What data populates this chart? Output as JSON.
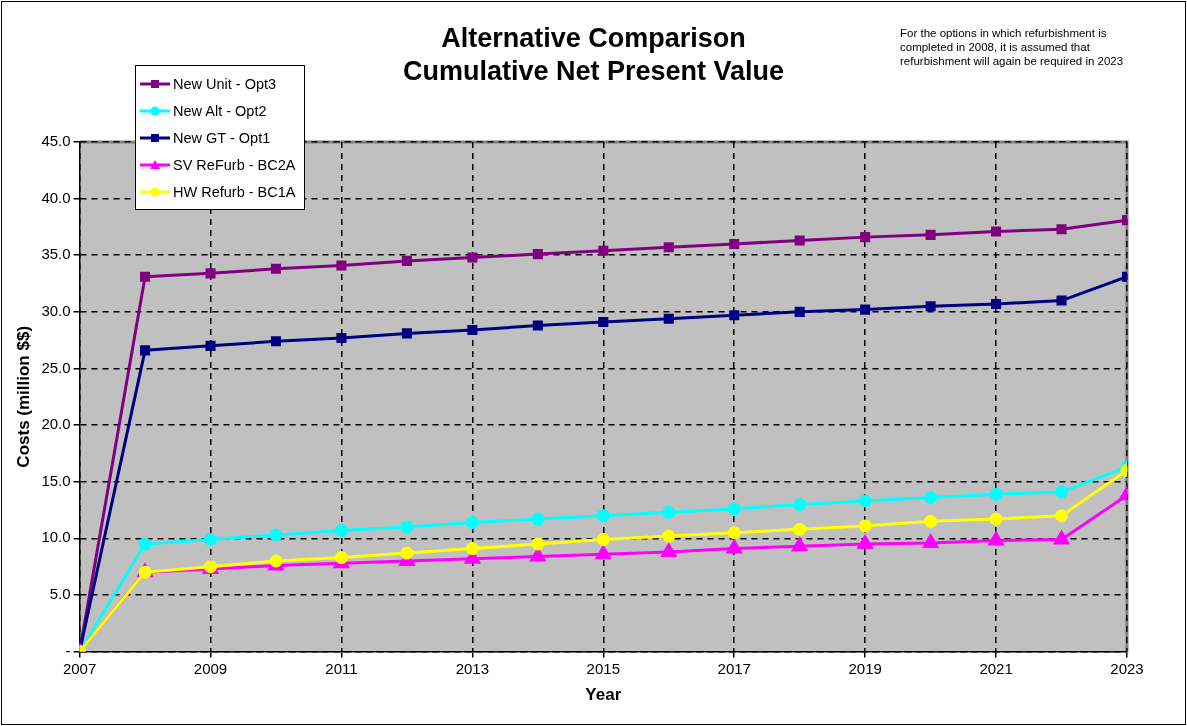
{
  "chart_data": {
    "type": "line",
    "title": "Alternative Comparison",
    "subtitle": "Cumulative Net Present Value",
    "xlabel": "Year",
    "ylabel": "Costs (million $$)",
    "annotations": [
      "For the options in which refurbishment is completed in 2008, it is assumed that refurbishment will again be required in 2023"
    ],
    "x": [
      2007,
      2008,
      2009,
      2010,
      2011,
      2012,
      2013,
      2014,
      2015,
      2016,
      2017,
      2018,
      2019,
      2020,
      2021,
      2022,
      2023
    ],
    "series": [
      {
        "name": "New Unit - Opt3",
        "color": "#800080",
        "marker": "square",
        "values": [
          0,
          33.1,
          33.4,
          33.8,
          34.1,
          34.5,
          34.8,
          35.1,
          35.4,
          35.7,
          36.0,
          36.3,
          36.6,
          36.8,
          37.1,
          37.3,
          38.1
        ]
      },
      {
        "name": "New Alt - Opt2",
        "color": "#00ffff",
        "marker": "circle",
        "values": [
          0,
          9.5,
          9.9,
          10.3,
          10.7,
          11.0,
          11.4,
          11.7,
          12.0,
          12.3,
          12.6,
          13.0,
          13.3,
          13.6,
          13.9,
          14.1,
          16.3
        ]
      },
      {
        "name": "New GT - Opt1",
        "color": "#000080",
        "marker": "square",
        "values": [
          0,
          26.6,
          27.0,
          27.4,
          27.7,
          28.1,
          28.4,
          28.8,
          29.1,
          29.4,
          29.7,
          30.0,
          30.2,
          30.5,
          30.7,
          31.0,
          33.1
        ]
      },
      {
        "name": "SV ReFurb - BC2A",
        "color": "#ff00ff",
        "marker": "triangle",
        "values": [
          0,
          7.0,
          7.3,
          7.6,
          7.8,
          8.0,
          8.2,
          8.4,
          8.6,
          8.8,
          9.1,
          9.3,
          9.5,
          9.6,
          9.8,
          9.9,
          13.8
        ]
      },
      {
        "name": "HW Refurb - BC1A",
        "color": "#ffff00",
        "marker": "circle",
        "values": [
          0,
          7.0,
          7.5,
          8.0,
          8.3,
          8.7,
          9.1,
          9.5,
          9.9,
          10.2,
          10.5,
          10.8,
          11.1,
          11.5,
          11.7,
          12.0,
          16.0
        ]
      }
    ],
    "xlim": [
      2007,
      2023
    ],
    "xticks": [
      2007,
      2009,
      2011,
      2013,
      2015,
      2017,
      2019,
      2021,
      2023
    ],
    "ylim": [
      0,
      45
    ],
    "yticks": [
      {
        "value": 0,
        "label": "-"
      },
      {
        "value": 5,
        "label": "5.0"
      },
      {
        "value": 10,
        "label": "10.0"
      },
      {
        "value": 15,
        "label": "15.0"
      },
      {
        "value": 20,
        "label": "20.0"
      },
      {
        "value": 25,
        "label": "25.0"
      },
      {
        "value": 30,
        "label": "30.0"
      },
      {
        "value": 35,
        "label": "35.0"
      },
      {
        "value": 40,
        "label": "40.0"
      },
      {
        "value": 45,
        "label": "45.0"
      }
    ],
    "grid": true,
    "line_style": "solid",
    "legend": "top left"
  }
}
